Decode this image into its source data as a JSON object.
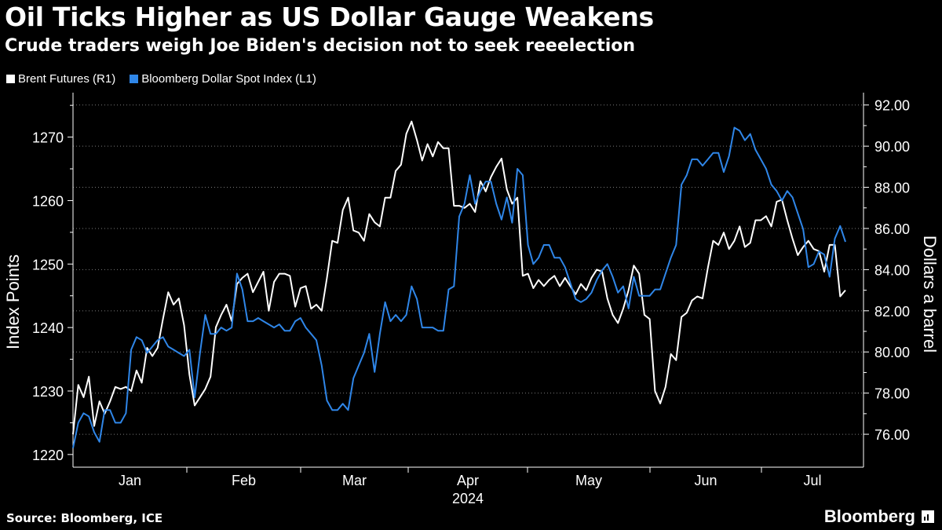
{
  "header": {
    "title": "Oil Ticks Higher as US Dollar Gauge Weakens",
    "subtitle": "Crude traders weigh Joe Biden's decision not to seek reeelection"
  },
  "footer": {
    "source": "Source: Bloomberg, ICE",
    "brand": "Bloomberg"
  },
  "colors": {
    "background": "#000000",
    "brent": "#ffffff",
    "dollar": "#2f86e8",
    "grid": "#7a7a7a"
  },
  "chart_data": {
    "type": "line",
    "title": "Oil Ticks Higher as US Dollar Gauge Weakens",
    "subtitle": "Crude traders weigh Joe Biden's decision not to seek reeelection",
    "x_labels": [
      "Jan",
      "Feb",
      "Mar",
      "Apr",
      "May",
      "Jun",
      "Jul"
    ],
    "x_year_label": "2024",
    "left_axis": {
      "label": "Index Points",
      "ticks": [
        "1220",
        "1230",
        "1240",
        "1250",
        "1260",
        "1270"
      ],
      "range": [
        1218,
        1277
      ]
    },
    "right_axis": {
      "label": "Dollars a barrel",
      "ticks": [
        "76.00",
        "78.00",
        "80.00",
        "82.00",
        "84.00",
        "86.00",
        "88.00",
        "90.00",
        "92.00"
      ],
      "range": [
        74.4,
        92.6
      ]
    },
    "grid": true,
    "series": [
      {
        "name": "Brent Futures (R1)",
        "axis": "right",
        "values": [
          76.0,
          78.4,
          77.8,
          78.8,
          76.4,
          77.6,
          77.0,
          77.6,
          78.3,
          78.2,
          78.3,
          78.1,
          79.1,
          78.5,
          80.2,
          79.8,
          80.2,
          81.6,
          82.9,
          82.3,
          82.6,
          81.3,
          78.9,
          77.4,
          77.8,
          78.2,
          78.8,
          81.2,
          81.8,
          82.3,
          81.5,
          83.3,
          83.6,
          83.8,
          82.9,
          83.4,
          83.9,
          82.0,
          83.4,
          83.8,
          83.8,
          83.7,
          82.2,
          83.1,
          83.2,
          82.1,
          82.3,
          82.0,
          83.6,
          85.4,
          85.3,
          86.9,
          87.5,
          85.9,
          85.8,
          85.4,
          86.7,
          86.3,
          86.1,
          87.5,
          87.5,
          88.8,
          89.1,
          90.6,
          91.2,
          90.3,
          89.3,
          90.1,
          89.5,
          90.2,
          89.9,
          89.9,
          87.1,
          87.1,
          87.0,
          87.2,
          86.8,
          88.3,
          87.8,
          88.5,
          89.0,
          89.4,
          87.9,
          87.2,
          87.5,
          83.7,
          83.8,
          83.1,
          83.5,
          83.2,
          83.5,
          83.7,
          83.2,
          83.6,
          83.2,
          82.8,
          83.3,
          83.0,
          83.6,
          84.0,
          83.9,
          82.6,
          81.8,
          81.4,
          82.1,
          83.0,
          84.2,
          83.8,
          81.8,
          81.6,
          78.1,
          77.5,
          78.3,
          79.9,
          79.6,
          81.7,
          81.9,
          82.5,
          82.7,
          82.6,
          84.1,
          85.4,
          85.2,
          85.8,
          85.0,
          85.4,
          86.1,
          85.1,
          85.3,
          86.4,
          86.4,
          86.6,
          86.1,
          87.3,
          87.4,
          86.4,
          85.5,
          84.7,
          85.1,
          85.4,
          85.0,
          84.9,
          83.9,
          85.2,
          85.2,
          82.7,
          83.0
        ]
      },
      {
        "name": "Bloomberg Dollar Spot Index  (L1)",
        "axis": "left",
        "values": [
          1221.0,
          1225.0,
          1226.5,
          1226.0,
          1223.5,
          1222.0,
          1227.0,
          1227.0,
          1225.0,
          1225.0,
          1226.5,
          1236.5,
          1238.5,
          1238.0,
          1236.0,
          1237.0,
          1238.0,
          1238.5,
          1237.0,
          1236.5,
          1236.0,
          1235.5,
          1236.5,
          1229.0,
          1236.0,
          1242.0,
          1239.0,
          1239.0,
          1240.0,
          1239.5,
          1240.0,
          1248.5,
          1246.0,
          1241.0,
          1241.0,
          1241.5,
          1241.0,
          1240.5,
          1240.0,
          1240.5,
          1239.5,
          1239.5,
          1241.0,
          1241.5,
          1240.0,
          1239.0,
          1238.0,
          1234.0,
          1228.5,
          1227.0,
          1227.0,
          1228.0,
          1227.0,
          1232.0,
          1234.0,
          1236.0,
          1239.0,
          1233.0,
          1239.0,
          1244.0,
          1241.0,
          1242.0,
          1241.0,
          1242.0,
          1246.5,
          1244.5,
          1240.0,
          1240.0,
          1240.0,
          1239.5,
          1239.5,
          1246.0,
          1246.5,
          1257.5,
          1259.5,
          1264.0,
          1259.5,
          1261.5,
          1263.0,
          1263.0,
          1259.5,
          1257.0,
          1260.5,
          1256.5,
          1265.0,
          1264.0,
          1253.0,
          1250.0,
          1251.0,
          1253.0,
          1253.0,
          1251.0,
          1251.0,
          1249.5,
          1247.0,
          1244.5,
          1244.0,
          1244.5,
          1245.5,
          1247.5,
          1249.0,
          1250.0,
          1248.0,
          1245.5,
          1246.5,
          1243.0,
          1248.0,
          1245.0,
          1245.0,
          1245.0,
          1246.0,
          1246.0,
          1248.5,
          1251.0,
          1253.0,
          1262.5,
          1264.0,
          1266.5,
          1266.5,
          1265.5,
          1266.5,
          1267.5,
          1267.5,
          1264.5,
          1267.0,
          1271.5,
          1271.0,
          1269.5,
          1270.5,
          1268.0,
          1266.5,
          1265.0,
          1262.5,
          1261.5,
          1260.0,
          1261.5,
          1260.5,
          1258.0,
          1255.5,
          1249.5,
          1250.0,
          1252.0,
          1251.5,
          1248.0,
          1254.0,
          1256.0,
          1253.5
        ]
      }
    ]
  }
}
